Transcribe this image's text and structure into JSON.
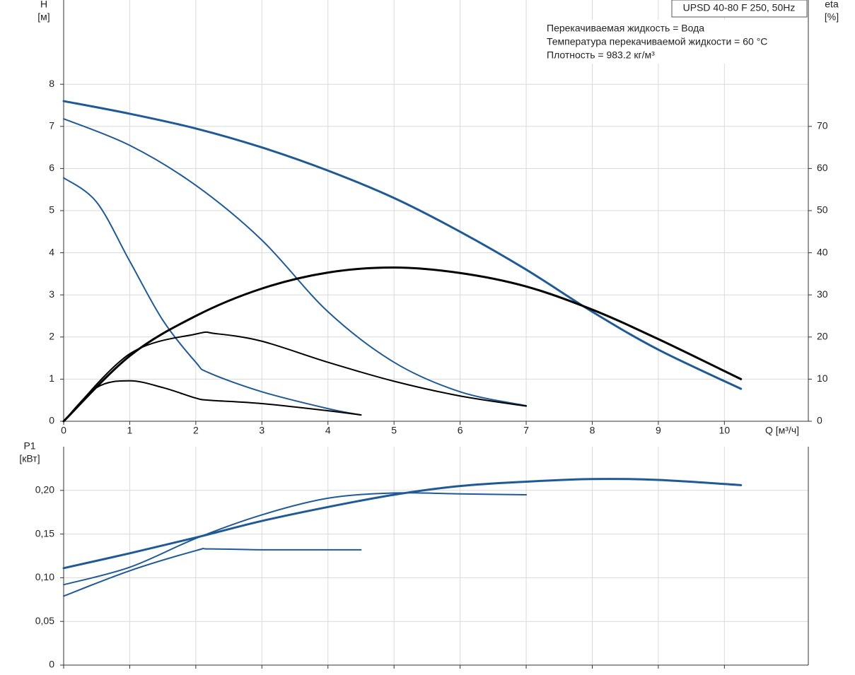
{
  "chart_data": [
    {
      "type": "line",
      "title": "UPSD 40-80 F 250, 50Hz",
      "annotations": [
        "Перекачиваемая жидкость = Вода",
        "Температура перекачиваемой жидкости = 60 °C",
        "Плотность = 983.2 кг/м³"
      ],
      "ylabel": [
        "H",
        "[м]"
      ],
      "y2label": [
        "eta",
        "[%]"
      ],
      "xlabel": "Q [м³/ч]",
      "xlim": [
        0,
        11.27
      ],
      "xticks": [
        0,
        1,
        2,
        3,
        4,
        5,
        6,
        7,
        8,
        9,
        10
      ],
      "ylim": [
        0,
        10
      ],
      "yticks": [
        0,
        1,
        2,
        3,
        4,
        5,
        6,
        7,
        8
      ],
      "y2lim": [
        0,
        100
      ],
      "y2ticks": [
        0,
        10,
        20,
        30,
        40,
        50,
        60,
        70
      ],
      "grid": true,
      "series": [
        {
          "color": "#1f5a96",
          "x": [
            0,
            1,
            2,
            3,
            4,
            5,
            6,
            7,
            8,
            9,
            10.25
          ],
          "values": [
            7.6,
            7.3,
            6.95,
            6.5,
            5.95,
            5.3,
            4.5,
            3.6,
            2.6,
            1.7,
            0.77
          ]
        },
        {
          "color": "#1f5a96",
          "x": [
            0,
            1,
            2,
            3,
            4,
            5,
            6,
            7
          ],
          "values": [
            7.18,
            6.55,
            5.6,
            4.3,
            2.6,
            1.4,
            0.7,
            0.37
          ]
        },
        {
          "color": "#1f5a96",
          "x": [
            0,
            0.5,
            1,
            1.5,
            2,
            2.2,
            3,
            4,
            4.5
          ],
          "values": [
            5.78,
            5.2,
            3.8,
            2.4,
            1.4,
            1.15,
            0.7,
            0.3,
            0.15
          ]
        },
        {
          "color": "#000000",
          "axis": "y2",
          "x": [
            0,
            1,
            2,
            3,
            4,
            5,
            6,
            7,
            8,
            9,
            10.25
          ],
          "values": [
            0,
            15.5,
            25,
            31.5,
            35.3,
            36.5,
            35.2,
            32,
            26.5,
            19.5,
            10
          ]
        },
        {
          "color": "#000000",
          "axis": "y2",
          "x": [
            0,
            1,
            2,
            2.3,
            3,
            4,
            5,
            6,
            7
          ],
          "values": [
            0,
            16,
            20.7,
            20.8,
            19,
            14,
            9.5,
            6,
            3.6
          ]
        },
        {
          "color": "#000000",
          "axis": "y2",
          "x": [
            0,
            0.5,
            1,
            1.5,
            2,
            2.2,
            3,
            4,
            4.5
          ],
          "values": [
            0,
            8,
            9.6,
            8,
            5.5,
            5,
            4.2,
            2.5,
            1.5
          ]
        }
      ]
    },
    {
      "type": "line",
      "ylabel": [
        "P1",
        "[кВт]"
      ],
      "xlim": [
        0,
        11.27
      ],
      "ylim": [
        0,
        0.25
      ],
      "yticks": [
        0,
        {
          "value": 0.05,
          "label": "0,05"
        },
        {
          "value": 0.1,
          "label": "0,10"
        },
        {
          "value": 0.15,
          "label": "0,15"
        },
        {
          "value": 0.2,
          "label": "0,20"
        }
      ],
      "grid": true,
      "series": [
        {
          "color": "#1f5a96",
          "x": [
            0,
            1,
            2,
            3,
            4,
            5,
            6,
            7,
            8,
            9,
            10.25
          ],
          "values": [
            0.111,
            0.128,
            0.146,
            0.165,
            0.181,
            0.195,
            0.205,
            0.21,
            0.213,
            0.212,
            0.206
          ]
        },
        {
          "color": "#1f5a96",
          "x": [
            0,
            1,
            2,
            3,
            4,
            5,
            6,
            7
          ],
          "values": [
            0.092,
            0.112,
            0.145,
            0.172,
            0.191,
            0.197,
            0.196,
            0.195
          ]
        },
        {
          "color": "#1f5a96",
          "x": [
            0,
            1,
            2,
            2.2,
            3,
            4,
            4.5
          ],
          "values": [
            0.079,
            0.108,
            0.131,
            0.133,
            0.132,
            0.132,
            0.132
          ]
        }
      ]
    }
  ]
}
